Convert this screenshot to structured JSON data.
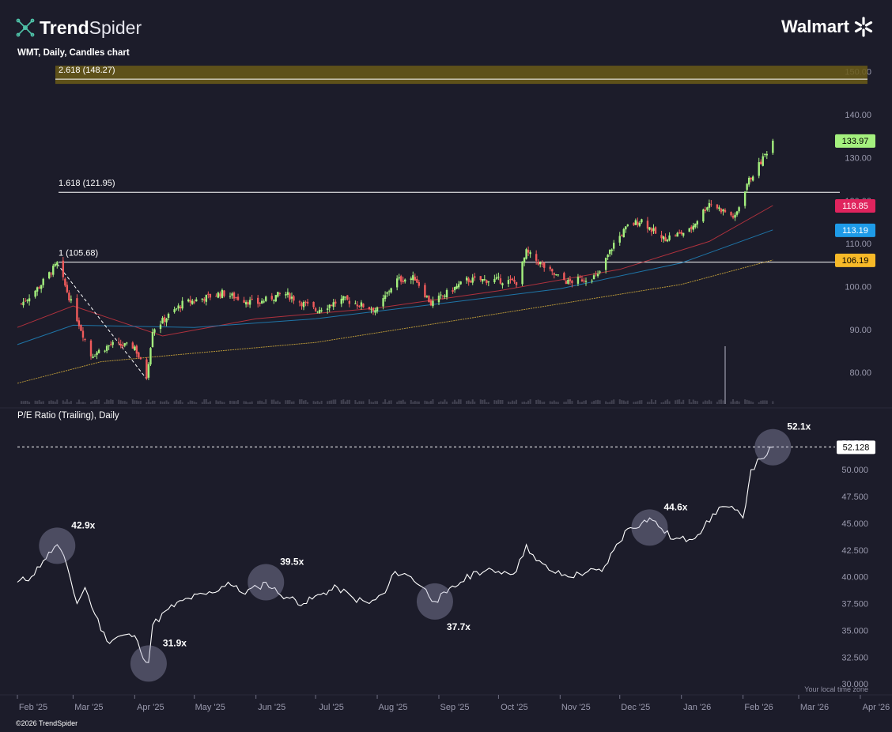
{
  "header": {
    "brand_bold": "Trend",
    "brand_light": "Spider",
    "company": "Walmart",
    "chart_title": "WMT, Daily, Candles chart",
    "pane2_title": "P/E Ratio (Trailing), Daily",
    "copyright": "©2026 TrendSpider",
    "local_time": "Your local time zone"
  },
  "colors": {
    "background": "#1c1c2a",
    "up": "#a4f07e",
    "down": "#f05b5b",
    "ma_fast": "#c0343f",
    "ma_mid": "#1f7fb6",
    "ma_slow": "#c9a43a",
    "fib_zone": "#6a5a18",
    "pe_line": "#ffffff"
  },
  "chart_data": [
    {
      "type": "candlestick",
      "title": "WMT, Daily, Candles chart",
      "x_axis": {
        "ticks": [
          "Feb '25",
          "Mar '25",
          "Apr '25",
          "May '25",
          "Jun '25",
          "Jul '25",
          "Aug '25",
          "Sep '25",
          "Oct '25",
          "Nov '25",
          "Dec '25",
          "Jan '26",
          "Feb '26",
          "Mar '26",
          "Apr '26"
        ],
        "range": [
          "2025-02-01",
          "2026-04-05"
        ]
      },
      "y_axis": {
        "ticks": [
          "150.00",
          "140.00",
          "130.00",
          "120.00",
          "110.00",
          "100.00",
          "90.00",
          "80.00"
        ],
        "range": [
          72.5,
          150.5
        ]
      },
      "price_key_points": [
        {
          "date": "2025-02-03",
          "price": 96.0
        },
        {
          "date": "2025-02-12",
          "price": 100.0
        },
        {
          "date": "2025-02-21",
          "price": 105.3
        },
        {
          "date": "2025-03-01",
          "price": 95.0
        },
        {
          "date": "2025-03-10",
          "price": 84.0
        },
        {
          "date": "2025-03-20",
          "price": 86.5
        },
        {
          "date": "2025-04-01",
          "price": 86.0
        },
        {
          "date": "2025-04-07",
          "price": 79.0
        },
        {
          "date": "2025-04-10",
          "price": 90.0
        },
        {
          "date": "2025-04-25",
          "price": 96.0
        },
        {
          "date": "2025-05-15",
          "price": 98.5
        },
        {
          "date": "2025-06-01",
          "price": 96.0
        },
        {
          "date": "2025-06-15",
          "price": 98.5
        },
        {
          "date": "2025-07-01",
          "price": 94.5
        },
        {
          "date": "2025-07-15",
          "price": 97.0
        },
        {
          "date": "2025-08-01",
          "price": 94.5
        },
        {
          "date": "2025-08-10",
          "price": 101.5
        },
        {
          "date": "2025-08-20",
          "price": 102.0
        },
        {
          "date": "2025-08-28",
          "price": 96.0
        },
        {
          "date": "2025-09-15",
          "price": 101.5
        },
        {
          "date": "2025-10-01",
          "price": 101.5
        },
        {
          "date": "2025-10-10",
          "price": 101.0
        },
        {
          "date": "2025-10-15",
          "price": 108.0
        },
        {
          "date": "2025-10-28",
          "price": 103.0
        },
        {
          "date": "2025-11-05",
          "price": 101.0
        },
        {
          "date": "2025-11-20",
          "price": 102.5
        },
        {
          "date": "2025-11-28",
          "price": 110.0
        },
        {
          "date": "2025-12-05",
          "price": 114.0
        },
        {
          "date": "2025-12-12",
          "price": 115.5
        },
        {
          "date": "2025-12-22",
          "price": 111.0
        },
        {
          "date": "2026-01-05",
          "price": 113.0
        },
        {
          "date": "2026-01-15",
          "price": 119.5
        },
        {
          "date": "2026-01-28",
          "price": 116.0
        },
        {
          "date": "2026-02-03",
          "price": 124.0
        },
        {
          "date": "2026-02-10",
          "price": 129.0
        },
        {
          "date": "2026-02-16",
          "price": 133.97
        }
      ],
      "moving_averages": [
        {
          "color": "#c0343f",
          "last": 118.85,
          "points": [
            {
              "date": "2025-02-01",
              "v": 90.5
            },
            {
              "date": "2025-03-01",
              "v": 95.5
            },
            {
              "date": "2025-04-15",
              "v": 88.5
            },
            {
              "date": "2025-06-01",
              "v": 92.5
            },
            {
              "date": "2025-08-01",
              "v": 95.0
            },
            {
              "date": "2025-10-01",
              "v": 99.0
            },
            {
              "date": "2025-12-01",
              "v": 104.0
            },
            {
              "date": "2026-01-15",
              "v": 110.5
            },
            {
              "date": "2026-02-16",
              "v": 118.85
            }
          ]
        },
        {
          "color": "#1f7fb6",
          "last": 113.19,
          "points": [
            {
              "date": "2025-02-01",
              "v": 86.5
            },
            {
              "date": "2025-03-01",
              "v": 91.0
            },
            {
              "date": "2025-05-01",
              "v": 90.5
            },
            {
              "date": "2025-07-01",
              "v": 92.5
            },
            {
              "date": "2025-09-01",
              "v": 96.0
            },
            {
              "date": "2025-11-01",
              "v": 99.5
            },
            {
              "date": "2026-01-01",
              "v": 105.5
            },
            {
              "date": "2026-02-16",
              "v": 113.19
            }
          ]
        },
        {
          "color": "#c9a43a",
          "last": 106.19,
          "points": [
            {
              "date": "2025-02-01",
              "v": 77.5
            },
            {
              "date": "2025-03-15",
              "v": 82.5
            },
            {
              "date": "2025-05-01",
              "v": 84.5
            },
            {
              "date": "2025-07-01",
              "v": 87.0
            },
            {
              "date": "2025-09-01",
              "v": 91.5
            },
            {
              "date": "2025-11-01",
              "v": 96.0
            },
            {
              "date": "2026-01-01",
              "v": 100.5
            },
            {
              "date": "2026-02-16",
              "v": 106.19
            }
          ]
        }
      ],
      "badges": [
        {
          "label": "133.97",
          "value": 133.97,
          "bg": "#a4f07e",
          "fg": "#000000"
        },
        {
          "label": "118.85",
          "value": 118.85,
          "bg": "#e0245e",
          "fg": "#ffffff"
        },
        {
          "label": "113.19",
          "value": 113.19,
          "bg": "#1e9be8",
          "fg": "#ffffff"
        },
        {
          "label": "106.19",
          "value": 106.19,
          "bg": "#f7b928",
          "fg": "#000000"
        }
      ],
      "fib_levels": [
        {
          "label": "2.618 (148.27)",
          "value": 148.27,
          "zone": true
        },
        {
          "label": "1.618 (121.95)",
          "value": 121.95,
          "zone": false
        },
        {
          "label": "1 (105.68)",
          "value": 105.68,
          "zone": false
        }
      ],
      "trend_line": [
        {
          "date": "2025-02-21",
          "price": 105.3
        },
        {
          "date": "2025-04-07",
          "price": 78.5
        }
      ]
    },
    {
      "type": "line",
      "title": "P/E Ratio (Trailing), Daily",
      "y_axis": {
        "ticks": [
          "52.500",
          "50.000",
          "47.500",
          "45.000",
          "42.500",
          "40.000",
          "37.500",
          "35.000",
          "32.500",
          "30.000"
        ],
        "range": [
          29.2,
          54.0
        ]
      },
      "current_badge": {
        "label": "52.128",
        "value": 52.128
      },
      "points": [
        {
          "date": "2025-02-01",
          "v": 39.5
        },
        {
          "date": "2025-02-08",
          "v": 40.0
        },
        {
          "date": "2025-02-14",
          "v": 41.5
        },
        {
          "date": "2025-02-21",
          "v": 43.0
        },
        {
          "date": "2025-02-26",
          "v": 41.0
        },
        {
          "date": "2025-03-03",
          "v": 37.5
        },
        {
          "date": "2025-03-07",
          "v": 39.0
        },
        {
          "date": "2025-03-12",
          "v": 36.5
        },
        {
          "date": "2025-03-18",
          "v": 34.0
        },
        {
          "date": "2025-03-25",
          "v": 34.5
        },
        {
          "date": "2025-04-01",
          "v": 34.5
        },
        {
          "date": "2025-04-04",
          "v": 33.0
        },
        {
          "date": "2025-04-08",
          "v": 32.0
        },
        {
          "date": "2025-04-10",
          "v": 35.5
        },
        {
          "date": "2025-04-18",
          "v": 37.0
        },
        {
          "date": "2025-04-28",
          "v": 38.0
        },
        {
          "date": "2025-05-10",
          "v": 38.5
        },
        {
          "date": "2025-05-18",
          "v": 39.5
        },
        {
          "date": "2025-05-25",
          "v": 38.5
        },
        {
          "date": "2025-06-02",
          "v": 39.0
        },
        {
          "date": "2025-06-06",
          "v": 39.5
        },
        {
          "date": "2025-06-12",
          "v": 38.5
        },
        {
          "date": "2025-06-18",
          "v": 38.0
        },
        {
          "date": "2025-06-25",
          "v": 37.5
        },
        {
          "date": "2025-07-05",
          "v": 38.5
        },
        {
          "date": "2025-07-12",
          "v": 39.0
        },
        {
          "date": "2025-07-20",
          "v": 38.0
        },
        {
          "date": "2025-07-28",
          "v": 37.5
        },
        {
          "date": "2025-08-05",
          "v": 38.5
        },
        {
          "date": "2025-08-10",
          "v": 40.5
        },
        {
          "date": "2025-08-18",
          "v": 40.0
        },
        {
          "date": "2025-08-24",
          "v": 39.0
        },
        {
          "date": "2025-08-30",
          "v": 37.7
        },
        {
          "date": "2025-09-05",
          "v": 38.5
        },
        {
          "date": "2025-09-12",
          "v": 39.5
        },
        {
          "date": "2025-09-20",
          "v": 40.5
        },
        {
          "date": "2025-10-01",
          "v": 40.5
        },
        {
          "date": "2025-10-10",
          "v": 40.5
        },
        {
          "date": "2025-10-15",
          "v": 43.0
        },
        {
          "date": "2025-10-20",
          "v": 41.5
        },
        {
          "date": "2025-10-28",
          "v": 40.5
        },
        {
          "date": "2025-11-05",
          "v": 40.0
        },
        {
          "date": "2025-11-15",
          "v": 40.5
        },
        {
          "date": "2025-11-22",
          "v": 40.5
        },
        {
          "date": "2025-11-28",
          "v": 42.5
        },
        {
          "date": "2025-12-05",
          "v": 44.5
        },
        {
          "date": "2025-12-12",
          "v": 45.0
        },
        {
          "date": "2025-12-16",
          "v": 45.5
        },
        {
          "date": "2025-12-22",
          "v": 44.5
        },
        {
          "date": "2025-12-28",
          "v": 43.5
        },
        {
          "date": "2026-01-05",
          "v": 43.5
        },
        {
          "date": "2026-01-12",
          "v": 44.5
        },
        {
          "date": "2026-01-20",
          "v": 46.5
        },
        {
          "date": "2026-01-25",
          "v": 46.5
        },
        {
          "date": "2026-02-01",
          "v": 45.5
        },
        {
          "date": "2026-02-05",
          "v": 50.0
        },
        {
          "date": "2026-02-10",
          "v": 51.0
        },
        {
          "date": "2026-02-16",
          "v": 52.1
        }
      ],
      "annotations": [
        {
          "label": "42.9x",
          "date": "2025-02-21",
          "value": 42.9,
          "pos": "right"
        },
        {
          "label": "31.9x",
          "date": "2025-04-08",
          "value": 31.9,
          "pos": "right"
        },
        {
          "label": "39.5x",
          "date": "2025-06-06",
          "value": 39.5,
          "pos": "right"
        },
        {
          "label": "37.7x",
          "date": "2025-08-30",
          "value": 37.7,
          "pos": "below"
        },
        {
          "label": "44.6x",
          "date": "2025-12-16",
          "value": 44.6,
          "pos": "right"
        },
        {
          "label": "52.1x",
          "date": "2026-02-16",
          "value": 52.1,
          "pos": "right"
        }
      ]
    }
  ]
}
